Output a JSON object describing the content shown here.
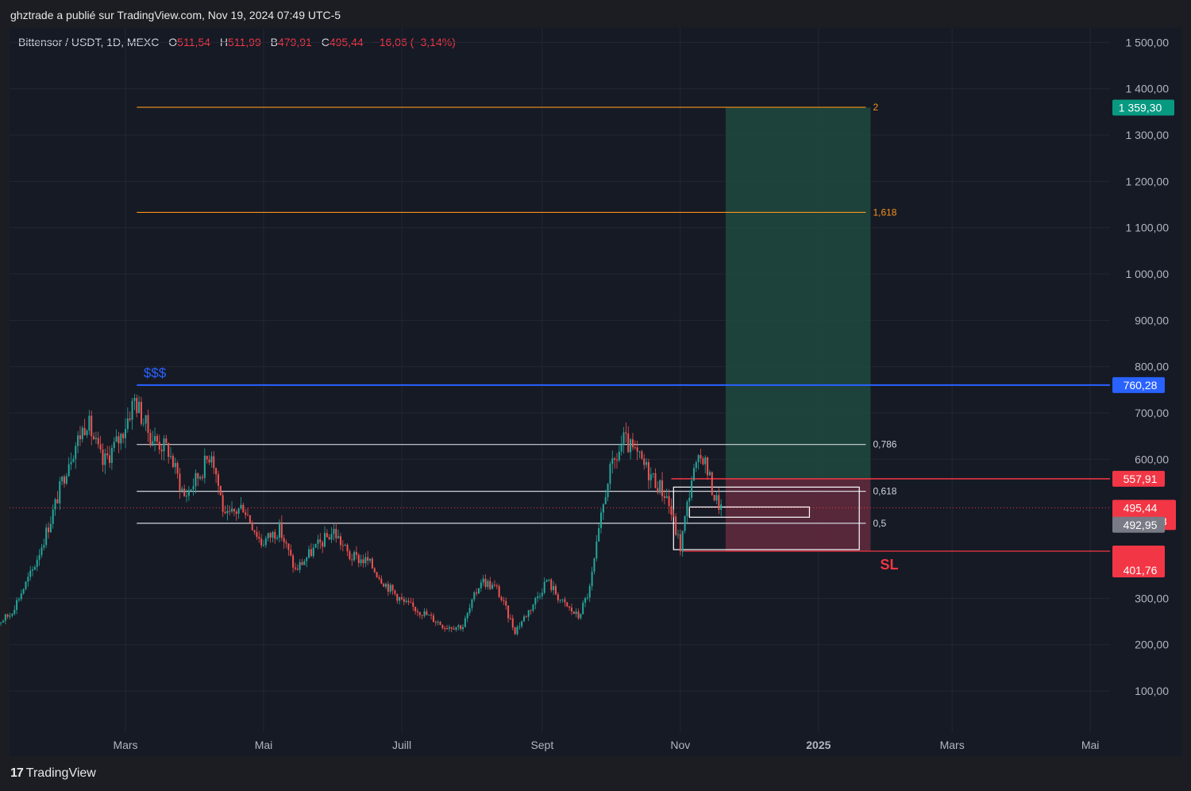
{
  "published": "ghztrade a publié sur TradingView.com, Nov 19, 2024 07:49 UTC-5",
  "brand": "TradingView",
  "brand_logo": "17",
  "symbol": "Bittensor / USDT, 1D, MEXC",
  "ohlc": {
    "o_label": "O",
    "o": "511,54",
    "h_label": "H",
    "h": "511,99",
    "l_label": "B",
    "l": "479,91",
    "c_label": "C",
    "c": "495,44",
    "change": "−16,06 (−3,14%)"
  },
  "colors": {
    "background": "#161a25",
    "up": "#26a69a",
    "down": "#ef5350",
    "liquidity_line": "#2962ff",
    "fib_orange": "#f7931a",
    "fib_white": "#d1d4dc",
    "target_zone": "#1e4a40",
    "stop_zone": "#5e2a3c",
    "sl_label": "#f23645"
  },
  "chart_data": {
    "type": "candlestick",
    "x_labels": [
      "Mars",
      "Mai",
      "Juill",
      "Sept",
      "Nov",
      "2025",
      "Mars",
      "Mai"
    ],
    "y_ticks": [
      "1 500,00",
      "1 400,00",
      "1 300,00",
      "1 200,00",
      "1 100,00",
      "1 000,00",
      "900,00",
      "800,00",
      "700,00",
      "600,00",
      "300,00",
      "200,00",
      "100,00"
    ],
    "y_tick_values": [
      1500,
      1400,
      1300,
      1200,
      1100,
      1000,
      900,
      800,
      700,
      600,
      300,
      200,
      100
    ],
    "ylim": [
      0,
      1560
    ],
    "price_path": [
      [
        "2024-01-01",
        235
      ],
      [
        "2024-01-10",
        265
      ],
      [
        "2024-01-20",
        360
      ],
      [
        "2024-01-28",
        470
      ],
      [
        "2024-02-05",
        600
      ],
      [
        "2024-02-13",
        685
      ],
      [
        "2024-02-20",
        590
      ],
      [
        "2024-02-28",
        650
      ],
      [
        "2024-03-05",
        730
      ],
      [
        "2024-03-12",
        650
      ],
      [
        "2024-03-20",
        620
      ],
      [
        "2024-03-27",
        520
      ],
      [
        "2024-04-03",
        570
      ],
      [
        "2024-04-08",
        620
      ],
      [
        "2024-04-14",
        470
      ],
      [
        "2024-04-22",
        500
      ],
      [
        "2024-04-30",
        420
      ],
      [
        "2024-05-08",
        450
      ],
      [
        "2024-05-15",
        360
      ],
      [
        "2024-05-22",
        400
      ],
      [
        "2024-06-01",
        445
      ],
      [
        "2024-06-08",
        390
      ],
      [
        "2024-06-16",
        380
      ],
      [
        "2024-06-24",
        330
      ],
      [
        "2024-07-02",
        290
      ],
      [
        "2024-07-10",
        270
      ],
      [
        "2024-07-20",
        240
      ],
      [
        "2024-07-28",
        240
      ],
      [
        "2024-08-05",
        340
      ],
      [
        "2024-08-12",
        320
      ],
      [
        "2024-08-20",
        230
      ],
      [
        "2024-08-27",
        280
      ],
      [
        "2024-09-03",
        340
      ],
      [
        "2024-09-10",
        290
      ],
      [
        "2024-09-17",
        260
      ],
      [
        "2024-09-22",
        320
      ],
      [
        "2024-09-30",
        560
      ],
      [
        "2024-10-07",
        640
      ],
      [
        "2024-10-14",
        600
      ],
      [
        "2024-10-20",
        560
      ],
      [
        "2024-10-26",
        520
      ],
      [
        "2024-11-01",
        410
      ],
      [
        "2024-11-06",
        560
      ],
      [
        "2024-11-11",
        610
      ],
      [
        "2024-11-16",
        520
      ],
      [
        "2024-11-19",
        495
      ]
    ],
    "liquidity_label": "$$$",
    "levels": [
      {
        "name": "liquidity",
        "value": 760.28,
        "label": "760,28"
      },
      {
        "name": "target",
        "value": 1359.3,
        "label": "1 359,30"
      },
      {
        "name": "entry",
        "value": 557.91,
        "label": "557,91"
      },
      {
        "name": "last",
        "value": 495.44,
        "label": "495,44"
      },
      {
        "name": "ref",
        "value": 492.95,
        "label": "492,95"
      },
      {
        "name": "stop",
        "value": 401.76,
        "label": "401,76"
      }
    ],
    "countdown": "11:10:38",
    "fib_levels": [
      {
        "label": "2",
        "value": 1360
      },
      {
        "label": "1,618",
        "value": 1133
      },
      {
        "label": "0,786",
        "value": 632
      },
      {
        "label": "0,618",
        "value": 531
      },
      {
        "label": "0,5",
        "value": 462
      }
    ],
    "sl_label": "SL",
    "stop_price_labels": [
      "401,76",
      "401,76"
    ]
  }
}
